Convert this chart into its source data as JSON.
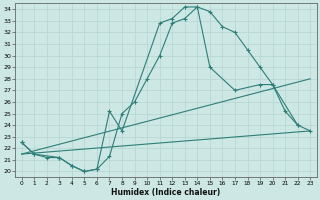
{
  "xlabel": "Humidex (Indice chaleur)",
  "ylabel": "",
  "background_color": "#cde8e4",
  "grid_color": "#b8d8d4",
  "line_color": "#2d7d78",
  "xlim": [
    -0.5,
    23.5
  ],
  "ylim": [
    19.5,
    34.5
  ],
  "xticks": [
    0,
    1,
    2,
    3,
    4,
    5,
    6,
    7,
    8,
    9,
    10,
    11,
    12,
    13,
    14,
    15,
    16,
    17,
    18,
    19,
    20,
    21,
    22,
    23
  ],
  "yticks": [
    20,
    21,
    22,
    23,
    24,
    25,
    26,
    27,
    28,
    29,
    30,
    31,
    32,
    33,
    34
  ],
  "series": [
    {
      "x": [
        0,
        1,
        2,
        3,
        4,
        5,
        6,
        7,
        8,
        9,
        10,
        11,
        12,
        13,
        14,
        15,
        16,
        17,
        18,
        19,
        20,
        21,
        22
      ],
      "y": [
        22.5,
        21.5,
        21.2,
        21.2,
        20.5,
        20.0,
        20.2,
        21.3,
        25.0,
        26.0,
        28.0,
        30.0,
        32.8,
        33.2,
        34.2,
        33.8,
        32.5,
        32.0,
        30.5,
        29.0,
        27.5,
        25.2,
        24.0
      ]
    },
    {
      "x": [
        0,
        1,
        3,
        4,
        5,
        6,
        7,
        8,
        11,
        12,
        13,
        14,
        15,
        17,
        19,
        20,
        22,
        23
      ],
      "y": [
        22.5,
        21.5,
        21.2,
        20.5,
        20.0,
        20.2,
        25.2,
        23.5,
        32.8,
        33.2,
        34.2,
        34.2,
        29.0,
        27.0,
        27.5,
        27.5,
        24.0,
        23.5
      ]
    },
    {
      "x": [
        0,
        23
      ],
      "y": [
        21.5,
        28.0
      ]
    },
    {
      "x": [
        0,
        23
      ],
      "y": [
        21.5,
        23.5
      ]
    }
  ]
}
